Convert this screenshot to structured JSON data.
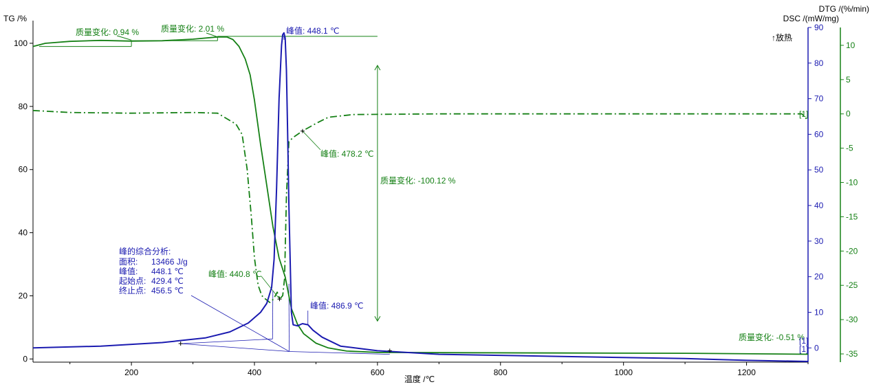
{
  "chart_data": {
    "type": "line",
    "x_axis": {
      "label": "温度 /℃",
      "range": [
        40,
        1300
      ],
      "ticks": [
        200,
        400,
        600,
        800,
        1000,
        1200
      ]
    },
    "y_axes": {
      "tg": {
        "label": "TG /%",
        "range": [
          -1,
          105
        ],
        "ticks": [
          0,
          20,
          40,
          60,
          80,
          100
        ],
        "color": "#000000"
      },
      "dsc": {
        "label": "DSC /(mW/mg)",
        "range": [
          -4,
          90
        ],
        "ticks": [
          0,
          10,
          20,
          30,
          40,
          50,
          60,
          70,
          80,
          90
        ],
        "color": "#1a1ab0"
      },
      "dtg": {
        "label": "DTG /(%/min)",
        "range": [
          -36.2,
          12.6
        ],
        "ticks": [
          10,
          5,
          0,
          -5,
          -10,
          -15,
          -20,
          -25,
          -30,
          -35
        ],
        "color": "#158015"
      }
    },
    "exo_label": "↑放热",
    "series": [
      {
        "key": "tg",
        "color": "#158015",
        "style": "solid",
        "points": [
          [
            40,
            99
          ],
          [
            60,
            100
          ],
          [
            100,
            100.6
          ],
          [
            150,
            100.9
          ],
          [
            200,
            100.7
          ],
          [
            250,
            100.8
          ],
          [
            300,
            101.3
          ],
          [
            340,
            102
          ],
          [
            355,
            102
          ],
          [
            365,
            101.2
          ],
          [
            375,
            99
          ],
          [
            385,
            95
          ],
          [
            393,
            90
          ],
          [
            400,
            82
          ],
          [
            410,
            68
          ],
          [
            420,
            55
          ],
          [
            430,
            42
          ],
          [
            440,
            32
          ],
          [
            450,
            26
          ],
          [
            460,
            16
          ],
          [
            470,
            11
          ],
          [
            480,
            8
          ],
          [
            500,
            5
          ],
          [
            520,
            3.5
          ],
          [
            550,
            2.5
          ],
          [
            600,
            2.1
          ],
          [
            700,
            2.0
          ],
          [
            900,
            1.9
          ],
          [
            1100,
            1.8
          ],
          [
            1300,
            1.5
          ]
        ]
      },
      {
        "key": "dtg",
        "color": "#158015",
        "style": "dashdot",
        "points": [
          [
            40,
            0.5
          ],
          [
            100,
            0.2
          ],
          [
            200,
            0.1
          ],
          [
            300,
            0.2
          ],
          [
            340,
            0.1
          ],
          [
            370,
            -1.5
          ],
          [
            380,
            -3
          ],
          [
            388,
            -8
          ],
          [
            395,
            -15
          ],
          [
            400,
            -21
          ],
          [
            406,
            -25
          ],
          [
            412,
            -26.5
          ],
          [
            418,
            -27
          ],
          [
            425,
            -27.5
          ],
          [
            431,
            -27
          ],
          [
            437,
            -26
          ],
          [
            441,
            -27
          ],
          [
            446,
            -26.5
          ],
          [
            449,
            -24
          ],
          [
            452,
            -12
          ],
          [
            456,
            -4
          ],
          [
            465,
            -3.3
          ],
          [
            478,
            -2.5
          ],
          [
            500,
            -1.4
          ],
          [
            520,
            -0.5
          ],
          [
            560,
            -0.1
          ],
          [
            700,
            0.0
          ],
          [
            1000,
            0.0
          ],
          [
            1290,
            0
          ],
          [
            1300,
            -1
          ]
        ]
      },
      {
        "key": "dsc",
        "color": "#1a1ab0",
        "style": "solid",
        "points": [
          [
            40,
            0
          ],
          [
            150,
            0.5
          ],
          [
            250,
            1.5
          ],
          [
            320,
            2.8
          ],
          [
            360,
            4.5
          ],
          [
            390,
            7
          ],
          [
            410,
            10
          ],
          [
            420,
            12.5
          ],
          [
            428,
            17
          ],
          [
            432,
            25
          ],
          [
            436,
            45
          ],
          [
            440,
            70
          ],
          [
            444,
            85
          ],
          [
            446,
            88
          ],
          [
            448,
            88.5
          ],
          [
            450,
            87
          ],
          [
            452,
            78
          ],
          [
            454,
            60
          ],
          [
            456,
            40
          ],
          [
            458,
            25
          ],
          [
            460,
            10
          ],
          [
            463,
            6.5
          ],
          [
            470,
            6.2
          ],
          [
            478,
            6.8
          ],
          [
            487,
            6.5
          ],
          [
            495,
            5
          ],
          [
            510,
            3
          ],
          [
            540,
            0.5
          ],
          [
            600,
            -0.8
          ],
          [
            700,
            -1.8
          ],
          [
            900,
            -2.4
          ],
          [
            1100,
            -3
          ],
          [
            1200,
            -3.5
          ],
          [
            1300,
            -3.8
          ]
        ]
      }
    ],
    "baselines": [
      {
        "color": "#1a1ab0",
        "points": [
          [
            280,
            1.2
          ],
          [
            429.4,
            2.5
          ]
        ]
      },
      {
        "color": "#1a1ab0",
        "points": [
          [
            429.4,
            2.5
          ],
          [
            430,
            16
          ]
        ]
      },
      {
        "color": "#1a1ab0",
        "points": [
          [
            280,
            1.2
          ],
          [
            456.5,
            -1
          ]
        ]
      },
      {
        "color": "#1a1ab0",
        "points": [
          [
            456.5,
            -1
          ],
          [
            456,
            18
          ]
        ]
      },
      {
        "color": "#1a1ab0",
        "points": [
          [
            456.5,
            -1
          ],
          [
            620,
            -1.8
          ]
        ]
      }
    ],
    "annotations": [
      {
        "text": "质量变化: 0.94 %",
        "color": "#158015",
        "px": [
          110,
          51
        ]
      },
      {
        "text": "质量变化: 2.01 %",
        "color": "#158015",
        "px": [
          234,
          46
        ]
      },
      {
        "text": "峰值: 448.1 ℃",
        "color": "#1a1ab0",
        "px": [
          416,
          49
        ]
      },
      {
        "text": "峰值: 478.2 ℃",
        "color": "#158015",
        "px": [
          466,
          228
        ]
      },
      {
        "text": "质量变化: -100.12 %",
        "color": "#158015",
        "px": [
          553,
          267
        ]
      },
      {
        "text": "峰值: 440.8 ℃",
        "color": "#158015",
        "px": [
          303,
          403
        ]
      },
      {
        "text": "峰值: 486.9 ℃",
        "color": "#1a1ab0",
        "px": [
          451,
          449
        ]
      },
      {
        "text": "质量变化: -0.51 %",
        "color": "#158015",
        "px": [
          1074,
          495
        ]
      }
    ],
    "peak_analysis": {
      "title": "峰的综合分析:",
      "rows": [
        {
          "label": "面积:",
          "value": "13466 J/g"
        },
        {
          "label": "峰值:",
          "value": "448.1 ℃"
        },
        {
          "label": "起始点:",
          "value": "429.4 ℃"
        },
        {
          "label": "终止点:",
          "value": "456.5 ℃"
        }
      ]
    },
    "end_marks": [
      "[1]",
      "[1]",
      "[1]"
    ]
  }
}
